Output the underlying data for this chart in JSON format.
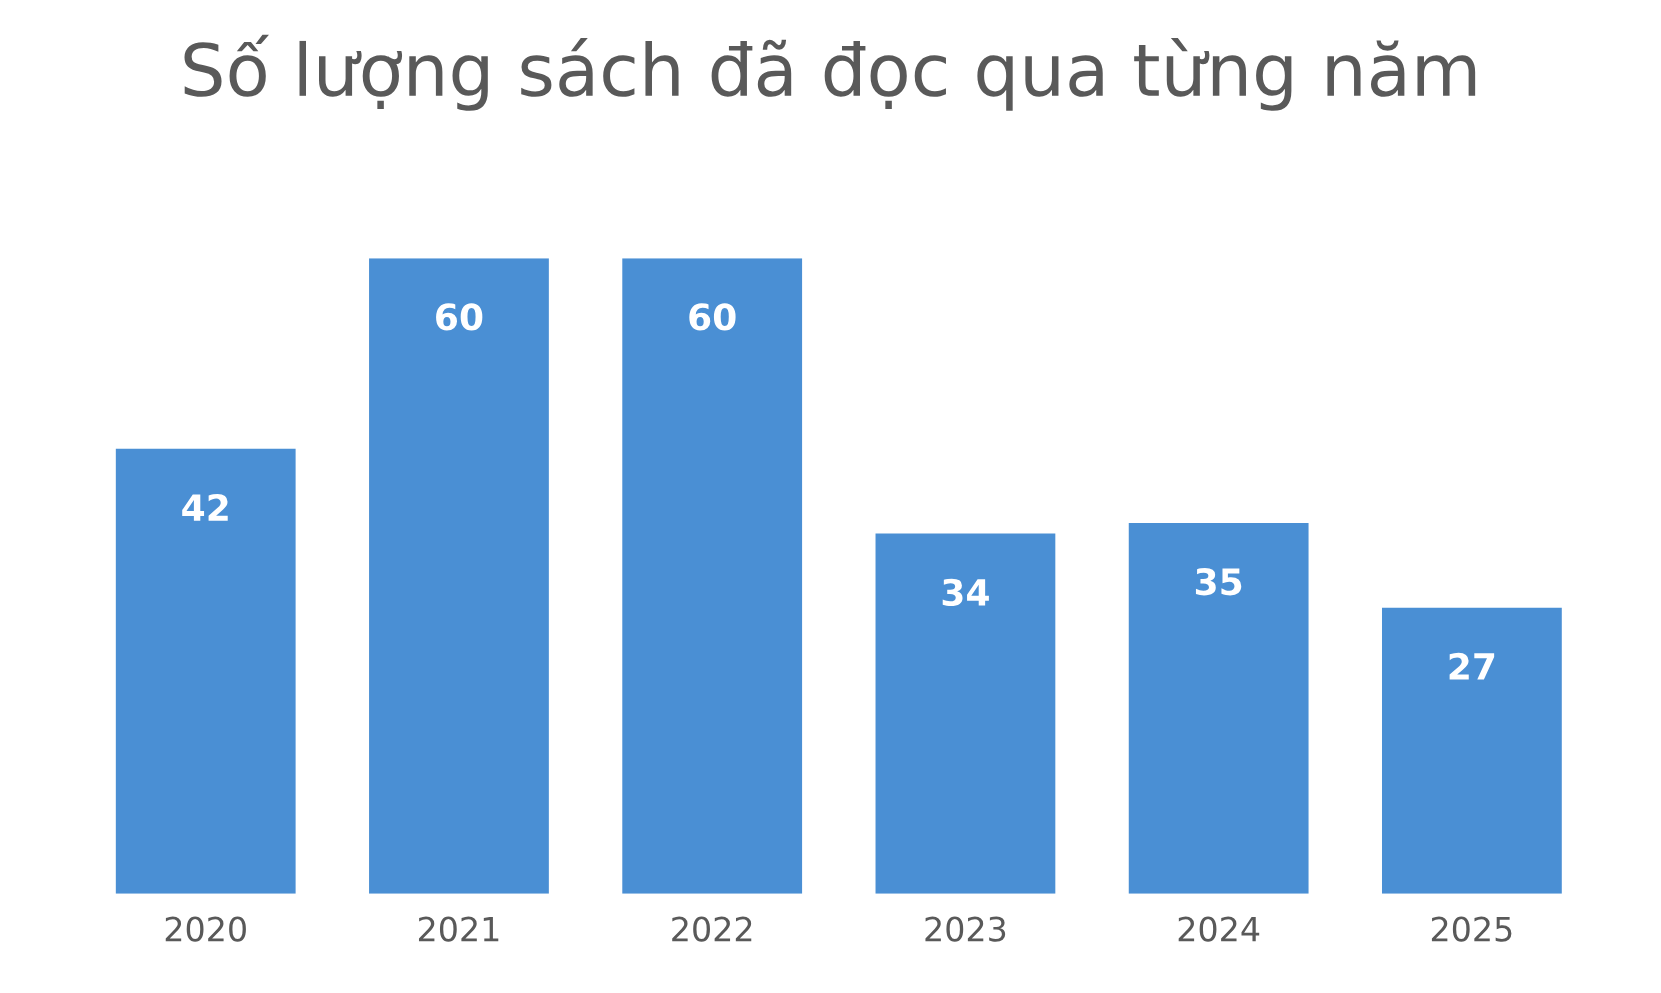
{
  "chart_data": {
    "type": "bar",
    "title": "Số lượng sách đã đọc qua từng năm",
    "categories": [
      "2020",
      "2021",
      "2022",
      "2023",
      "2024",
      "2025"
    ],
    "values": [
      42,
      60,
      60,
      34,
      35,
      27
    ],
    "color": "#4a8fd4",
    "data_labels": true,
    "grid": false,
    "legend": false,
    "tick_labels": "x"
  }
}
